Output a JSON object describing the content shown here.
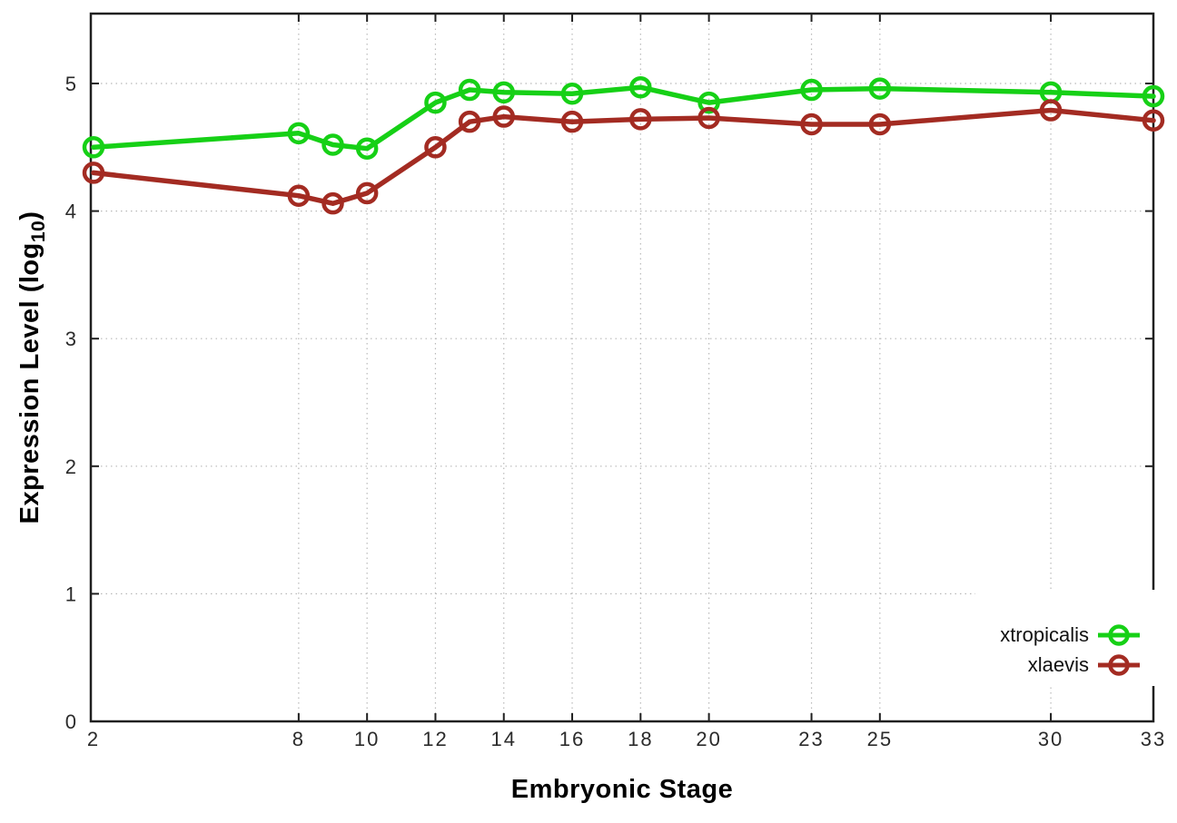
{
  "figure": {
    "background": "#ffffff",
    "xlabel": "Embryonic Stage",
    "ylabel": "Expression Level (log10)",
    "ylabel_parts": {
      "prefix": "Expression Level (log",
      "sub": "10",
      "suffix": ")"
    }
  },
  "legend": {
    "position": "bottom-right",
    "entries": [
      {
        "label": "xtropicalis",
        "color": "#16d016"
      },
      {
        "label": "xlaevis",
        "color": "#a32b22"
      }
    ]
  },
  "colors": {
    "xtropicalis": "#16d016",
    "xlaevis": "#a32b22",
    "grid": "#b9b9b9",
    "border": "#202020",
    "tick_text": "#2b2b2b"
  },
  "chart_data": {
    "type": "line",
    "title": "",
    "xlabel": "Embryonic Stage",
    "ylabel": "Expression Level (log10)",
    "x": [
      2,
      8,
      9,
      10,
      12,
      13,
      14,
      16,
      18,
      20,
      23,
      25,
      30,
      33
    ],
    "x_ticks": [
      2,
      8,
      10,
      12,
      14,
      16,
      18,
      20,
      23,
      25,
      30,
      33
    ],
    "y_ticks": [
      0,
      1,
      2,
      3,
      4,
      5
    ],
    "xlim": [
      2,
      33
    ],
    "ylim": [
      0,
      5.55
    ],
    "grid": true,
    "grid_style": "dotted",
    "legend_position": "bottom-right",
    "marker": "open-circle",
    "series": [
      {
        "name": "xtropicalis",
        "color": "#16d016",
        "values": [
          4.5,
          4.61,
          4.52,
          4.49,
          4.85,
          4.95,
          4.93,
          4.92,
          4.97,
          4.85,
          4.95,
          4.96,
          4.93,
          4.9
        ]
      },
      {
        "name": "xlaevis",
        "color": "#a32b22",
        "values": [
          4.3,
          4.12,
          4.06,
          4.14,
          4.5,
          4.7,
          4.74,
          4.7,
          4.72,
          4.73,
          4.68,
          4.68,
          4.79,
          4.71
        ]
      }
    ]
  }
}
